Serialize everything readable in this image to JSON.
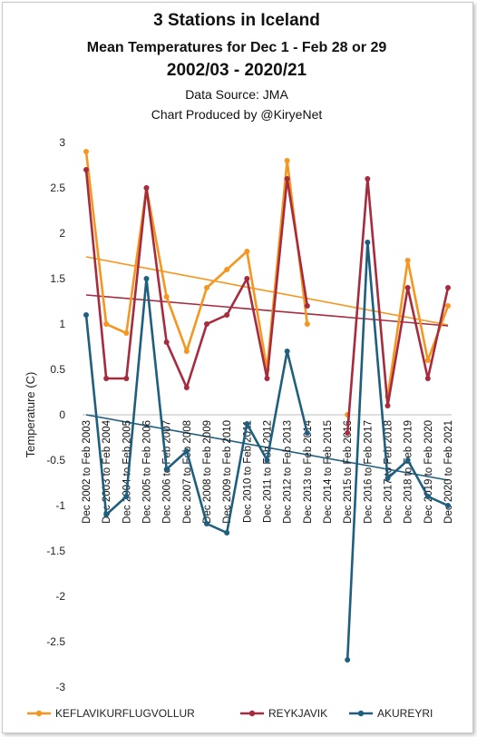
{
  "chart_data": {
    "type": "line",
    "title": "3 Stations in Iceland",
    "subtitle": "Mean Temperatures  for Dec 1 - Feb 28 or 29",
    "subtitle2": "2002/03  -  2020/21",
    "source": "Data Source: JMA",
    "credit": "Chart Produced by @KiryeNet",
    "ylabel": "Temperature (C)",
    "ylim": [
      -3,
      3
    ],
    "yticks": [
      3,
      2.5,
      2,
      1.5,
      1,
      0.5,
      0,
      -0.5,
      -1,
      -1.5,
      -2,
      -2.5,
      -3
    ],
    "ytick_labels": [
      "3",
      "2.5",
      "2",
      "1.5",
      "1",
      "0.5",
      "0",
      "-0.5",
      "-1",
      "-1.5",
      "-2",
      "-2.5",
      "-3"
    ],
    "categories": [
      "Dec 2002 to Feb 2003",
      "Dec 2003 to Feb 2004",
      "Dec 2004 to Feb 2005",
      "Dec 2005 to Feb 2006",
      "Dec 2006 to Feb 2007",
      "Dec 2007 to Feb 2008",
      "Dec 2008 to Feb 2009",
      "Dec 2009 to Feb 2010",
      "Dec 2010 to Feb 2011",
      "Dec 2011 to Feb 2012",
      "Dec 2012 to Feb 2013",
      "Dec 2013 to Feb 2014",
      "Dec 2014 to Feb 2015",
      "Dec 2015 to Feb 2016",
      "Dec 2016 to Feb 2017",
      "Dec 2017 to Feb 2018",
      "Dec 2018 to Feb 2019",
      "Dec 2019 to Feb 2020",
      "Dec 2020 to Feb 2021"
    ],
    "series": [
      {
        "name": "KEFLAVIKURFLUGVOLLUR",
        "color": "#f5961e",
        "values": [
          2.9,
          1.0,
          0.9,
          2.5,
          1.3,
          0.7,
          1.4,
          1.6,
          1.8,
          0.5,
          2.8,
          1.0,
          null,
          0.0,
          null,
          0.2,
          1.7,
          0.6,
          1.2
        ],
        "trend": [
          1.74,
          0.99
        ]
      },
      {
        "name": "REYKJAVIK",
        "color": "#a62b3e",
        "values": [
          2.7,
          0.4,
          0.4,
          2.5,
          0.8,
          0.3,
          1.0,
          1.1,
          1.5,
          0.4,
          2.6,
          1.2,
          null,
          -0.2,
          2.6,
          0.1,
          1.4,
          0.4,
          1.4
        ],
        "trend": [
          1.32,
          0.98
        ]
      },
      {
        "name": "AKUREYRI",
        "color": "#1e5f80",
        "values": [
          1.1,
          -1.1,
          -0.9,
          1.5,
          -0.6,
          -0.4,
          -1.2,
          -1.3,
          -0.1,
          -0.5,
          0.7,
          -0.2,
          null,
          -2.7,
          1.9,
          -0.7,
          -0.5,
          -0.9,
          -1.0
        ],
        "trend": [
          0.0,
          -0.72
        ]
      }
    ],
    "legend_position": "bottom",
    "grid": false
  }
}
